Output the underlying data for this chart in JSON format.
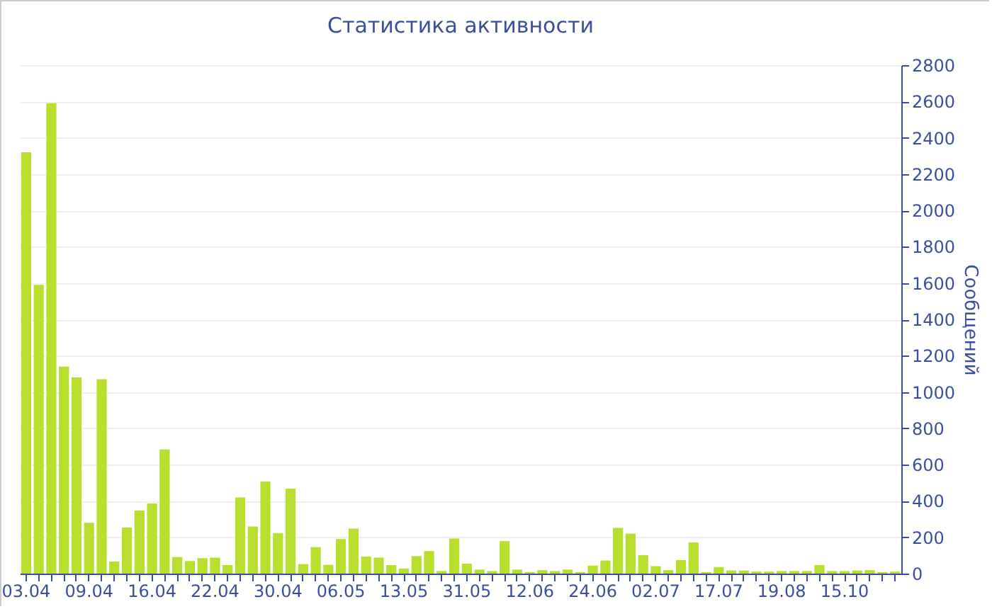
{
  "chart_data": {
    "type": "bar",
    "title": "Статистика активности",
    "ylabel": "Сообщений",
    "categories": [
      "03.04",
      null,
      null,
      null,
      null,
      "09.04",
      null,
      null,
      null,
      null,
      "16.04",
      null,
      null,
      null,
      null,
      "22.04",
      null,
      null,
      null,
      null,
      "30.04",
      null,
      null,
      null,
      null,
      "06.05",
      null,
      null,
      null,
      null,
      "13.05",
      null,
      null,
      null,
      null,
      "31.05",
      null,
      null,
      null,
      null,
      "12.06",
      null,
      null,
      null,
      null,
      "24.06",
      null,
      null,
      null,
      null,
      "02.07",
      null,
      null,
      null,
      null,
      "17.07",
      null,
      null,
      null,
      null,
      "19.08",
      null,
      null,
      null,
      null,
      "15.10",
      null,
      null,
      null,
      null
    ],
    "values": [
      2320,
      1590,
      2590,
      1140,
      1080,
      280,
      1070,
      66,
      253,
      347,
      386,
      683,
      91,
      69,
      85,
      88,
      47,
      419,
      259,
      507,
      223,
      468,
      52,
      146,
      48,
      190,
      248,
      94,
      88,
      47,
      28,
      96,
      124,
      14,
      193,
      55,
      22,
      14,
      179,
      22,
      8,
      19,
      14,
      22,
      8,
      44,
      72,
      252,
      220,
      102,
      41,
      19,
      74,
      171,
      8,
      36,
      17,
      17,
      11,
      11,
      14,
      14,
      14,
      47,
      14,
      14,
      17,
      19,
      8,
      11
    ],
    "color": "#b8de2e",
    "ylim": [
      0,
      2800
    ],
    "yticks": [
      0,
      200,
      400,
      600,
      800,
      1000,
      1200,
      1400,
      1600,
      1800,
      2000,
      2200,
      2400,
      2600,
      2800
    ],
    "grid": "y"
  }
}
